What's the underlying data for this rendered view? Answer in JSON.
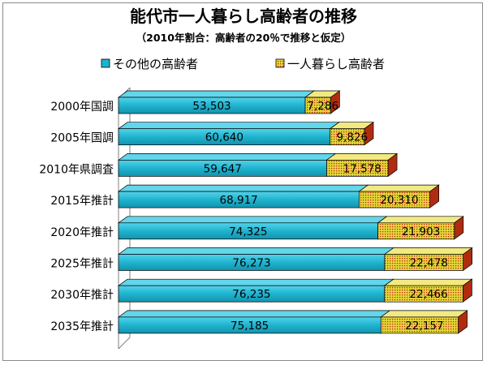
{
  "chart_data": {
    "type": "bar",
    "orientation": "horizontal",
    "stacked": true,
    "three_d": true,
    "title": "能代市一人暮らし高齢者の推移",
    "subtitle": "（2010年割合：高齢者の20％で推移と仮定）",
    "categories": [
      "2000年国調",
      "2005年国調",
      "2010年県調査",
      "2015年推計",
      "2020年推計",
      "2025年推計",
      "2030年推計",
      "2035年推計"
    ],
    "series": [
      {
        "name": "その他の高齢者",
        "values": [
          53503,
          60640,
          59647,
          68917,
          74325,
          76273,
          76235,
          75185
        ],
        "labels": [
          "53,503",
          "60,640",
          "59,647",
          "68,917",
          "74,325",
          "76,273",
          "76,235",
          "75,185"
        ]
      },
      {
        "name": "一人暮らし高齢者",
        "values": [
          7286,
          9826,
          17578,
          20310,
          21903,
          22478,
          22466,
          22157
        ],
        "labels": [
          "7,286",
          "9,826",
          "17,578",
          "20,310",
          "21,903",
          "22,478",
          "22,466",
          "22,157"
        ]
      }
    ],
    "xlim": [
      0,
      100000
    ],
    "grid": false,
    "legend_placement": "top",
    "colors": {
      "series1_front": "#1fb3cf",
      "series1_top": "#62d6ea",
      "series1_side": "#117f95",
      "series2_front": "#e0d63a",
      "series2_top": "#f2ea80",
      "series2_side": "#b02c10",
      "series2_dot": "#c02a12"
    }
  }
}
